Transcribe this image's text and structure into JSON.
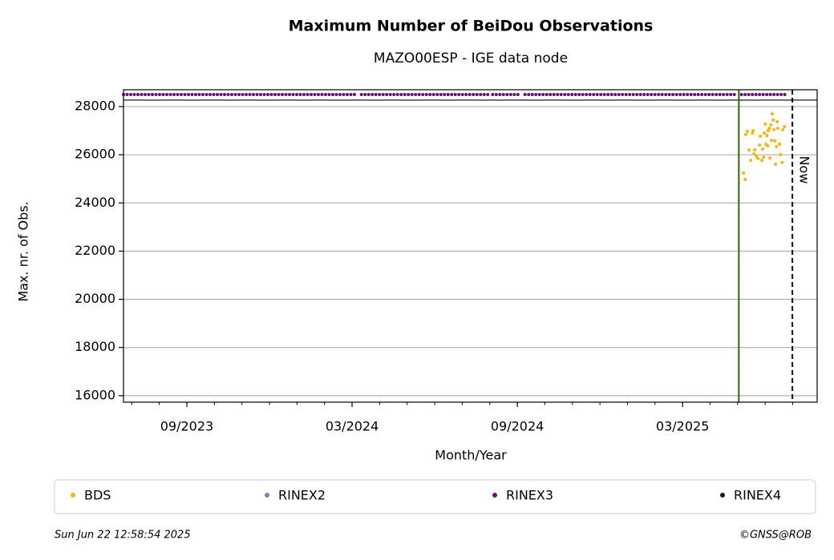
{
  "chart_data": {
    "type": "scatter",
    "title": "Maximum Number of BeiDou Observations",
    "subtitle": "MAZO00ESP - IGE data node",
    "x_label": "Month/Year",
    "y_label": "Max. nr. of Obs.",
    "xlim": [
      2023.475,
      2025.574
    ],
    "ylim": [
      15730,
      28700
    ],
    "xticks": [
      {
        "value": 2023.6667,
        "label": "09/2023"
      },
      {
        "value": 2024.1667,
        "label": "03/2024"
      },
      {
        "value": 2024.6667,
        "label": "09/2024"
      },
      {
        "value": 2025.1667,
        "label": "03/2025"
      }
    ],
    "xminorticks": [
      2023.5,
      2023.5833,
      2023.75,
      2023.8333,
      2023.9167,
      2024.0,
      2024.0833,
      2024.25,
      2024.3333,
      2024.4167,
      2024.5,
      2024.5833,
      2024.75,
      2024.8333,
      2024.9167,
      2025.0,
      2025.0833,
      2025.25,
      2025.3333,
      2025.4167,
      2025.5
    ],
    "yticks": [
      16000,
      18000,
      20000,
      22000,
      24000,
      26000,
      28000
    ],
    "grid": true,
    "hline": 28270,
    "markers": [
      {
        "x": 2025.337,
        "color": "#008000",
        "overlay_color": "#ff0000"
      },
      {
        "x": 2025.499,
        "color": "#000000",
        "label": "Now"
      }
    ],
    "series": [
      {
        "name": "BDS",
        "type": "scatter",
        "color": "#f9b50f",
        "x": [
          2025.351,
          2025.356,
          2025.358,
          2025.363,
          2025.368,
          2025.373,
          2025.378,
          2025.38,
          2025.383,
          2025.385,
          2025.39,
          2025.395,
          2025.4,
          2025.402,
          2025.407,
          2025.409,
          2025.412,
          2025.414,
          2025.417,
          2025.419,
          2025.422,
          2025.424,
          2025.426,
          2025.429,
          2025.431,
          2025.434,
          2025.436,
          2025.438,
          2025.441,
          2025.443,
          2025.446,
          2025.448,
          2025.451,
          2025.453,
          2025.455,
          2025.46,
          2025.463,
          2025.468,
          2025.47,
          2025.475
        ],
        "values": [
          25240,
          24975,
          26840,
          26970,
          26200,
          25770,
          26900,
          27000,
          26040,
          26200,
          25940,
          25840,
          26400,
          26770,
          25770,
          26240,
          25900,
          26900,
          27270,
          26440,
          26800,
          26370,
          27000,
          27100,
          25870,
          27240,
          26600,
          27700,
          27440,
          27040,
          26570,
          25610,
          26340,
          27370,
          27100,
          26440,
          26010,
          25680,
          27040,
          27170
        ]
      },
      {
        "name": "RINEX2",
        "type": "scatter",
        "color": "#7f7fbf",
        "x": [],
        "values": []
      },
      {
        "name": "RINEX3",
        "type": "line",
        "color": "#6a106f",
        "x": [
          2023.475,
          2024.183,
          2024.188,
          2024.195,
          2024.58,
          2024.585,
          2024.592,
          2024.678,
          2024.683,
          2024.69,
          2025.333,
          2025.338,
          2025.345,
          2025.48
        ],
        "values": [
          28500,
          28500,
          null,
          28500,
          28500,
          null,
          28500,
          28500,
          null,
          28500,
          28500,
          null,
          28500,
          28500
        ]
      },
      {
        "name": "RINEX4",
        "type": "scatter",
        "color": "#1e0b2b",
        "x": [],
        "values": []
      }
    ],
    "footer_left": "Sun Jun 22 12:58:54 2025",
    "footer_right": "©GNSS@ROB"
  }
}
